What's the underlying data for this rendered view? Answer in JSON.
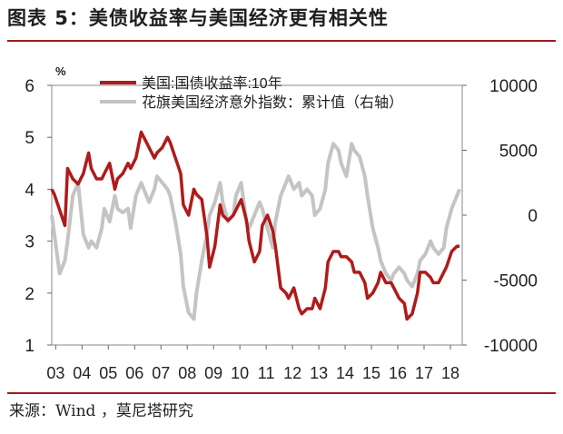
{
  "figure": {
    "title": "图表 5：美债收益率与美国经济更有相关性",
    "source": "来源：Wind ，莫尼塔研究"
  },
  "chart_data": {
    "type": "line",
    "left_axis_unit": "%",
    "x_ticks": [
      "03",
      "04",
      "05",
      "06",
      "07",
      "08",
      "09",
      "10",
      "11",
      "12",
      "13",
      "14",
      "15",
      "16",
      "17",
      "18"
    ],
    "y_left": {
      "min": 1,
      "max": 6,
      "ticks": [
        1,
        2,
        3,
        4,
        5,
        6
      ]
    },
    "y_right": {
      "min": -10000,
      "max": 10000,
      "ticks": [
        -10000,
        -5000,
        0,
        5000,
        10000
      ]
    },
    "legend_position": "top",
    "grid": false,
    "series": [
      {
        "name": "美国:国债收益率:10年",
        "axis": "left",
        "color": "#b01a1a",
        "x": [
          2003.0,
          2003.1,
          2003.3,
          2003.5,
          2003.6,
          2003.8,
          2004.0,
          2004.2,
          2004.4,
          2004.5,
          2004.7,
          2004.9,
          2005.0,
          2005.2,
          2005.4,
          2005.5,
          2005.7,
          2005.9,
          2006.0,
          2006.2,
          2006.4,
          2006.5,
          2006.7,
          2006.9,
          2007.0,
          2007.2,
          2007.4,
          2007.5,
          2007.7,
          2007.9,
          2008.0,
          2008.2,
          2008.4,
          2008.5,
          2008.7,
          2008.9,
          2009.0,
          2009.2,
          2009.4,
          2009.5,
          2009.7,
          2009.9,
          2010.0,
          2010.2,
          2010.4,
          2010.5,
          2010.7,
          2010.9,
          2011.0,
          2011.2,
          2011.4,
          2011.5,
          2011.7,
          2011.9,
          2012.0,
          2012.2,
          2012.4,
          2012.5,
          2012.7,
          2012.9,
          2013.0,
          2013.2,
          2013.4,
          2013.5,
          2013.7,
          2013.9,
          2014.0,
          2014.2,
          2014.4,
          2014.5,
          2014.7,
          2014.9,
          2015.0,
          2015.2,
          2015.4,
          2015.5,
          2015.7,
          2015.9,
          2016.0,
          2016.2,
          2016.4,
          2016.5,
          2016.7,
          2016.9,
          2017.0,
          2017.2,
          2017.4,
          2017.5,
          2017.7,
          2017.9,
          2018.0,
          2018.2,
          2018.4,
          2018.5
        ],
        "values": [
          4.0,
          3.9,
          3.6,
          3.3,
          4.4,
          4.2,
          4.1,
          4.3,
          4.7,
          4.4,
          4.2,
          4.2,
          4.3,
          4.5,
          4.0,
          4.2,
          4.3,
          4.5,
          4.4,
          4.6,
          5.1,
          5.0,
          4.8,
          4.6,
          4.7,
          4.8,
          5.0,
          4.9,
          4.6,
          4.3,
          3.7,
          3.5,
          4.0,
          3.9,
          3.8,
          3.1,
          2.5,
          2.9,
          3.7,
          3.5,
          3.4,
          3.5,
          3.6,
          3.8,
          3.4,
          3.0,
          2.6,
          2.8,
          3.3,
          3.5,
          3.2,
          2.9,
          2.1,
          2.0,
          1.9,
          2.1,
          1.7,
          1.6,
          1.7,
          1.7,
          1.9,
          1.7,
          2.1,
          2.6,
          2.8,
          2.8,
          2.7,
          2.7,
          2.6,
          2.4,
          2.4,
          2.2,
          1.9,
          2.0,
          2.2,
          2.4,
          2.2,
          2.2,
          2.1,
          1.9,
          1.8,
          1.5,
          1.6,
          2.0,
          2.4,
          2.4,
          2.3,
          2.2,
          2.2,
          2.4,
          2.5,
          2.8,
          2.9,
          2.9
        ]
      },
      {
        "name": "花旗美国经济意外指数：累计值（右轴）",
        "axis": "right",
        "color": "#c4c4c4",
        "x": [
          2003.0,
          2003.1,
          2003.3,
          2003.5,
          2003.6,
          2003.8,
          2004.0,
          2004.2,
          2004.4,
          2004.5,
          2004.7,
          2004.9,
          2005.0,
          2005.2,
          2005.4,
          2005.5,
          2005.7,
          2005.9,
          2006.0,
          2006.2,
          2006.4,
          2006.5,
          2006.7,
          2006.9,
          2007.0,
          2007.2,
          2007.4,
          2007.5,
          2007.7,
          2007.9,
          2008.0,
          2008.2,
          2008.4,
          2008.5,
          2008.7,
          2008.9,
          2009.0,
          2009.2,
          2009.4,
          2009.5,
          2009.7,
          2009.9,
          2010.0,
          2010.2,
          2010.4,
          2010.5,
          2010.7,
          2010.9,
          2011.0,
          2011.2,
          2011.4,
          2011.5,
          2011.7,
          2011.9,
          2012.0,
          2012.2,
          2012.4,
          2012.5,
          2012.7,
          2012.9,
          2013.0,
          2013.2,
          2013.4,
          2013.5,
          2013.7,
          2013.9,
          2014.0,
          2014.2,
          2014.4,
          2014.5,
          2014.7,
          2014.9,
          2015.0,
          2015.2,
          2015.4,
          2015.5,
          2015.7,
          2015.9,
          2016.0,
          2016.2,
          2016.4,
          2016.5,
          2016.7,
          2016.9,
          2017.0,
          2017.2,
          2017.4,
          2017.5,
          2017.7,
          2017.9,
          2018.0,
          2018.2,
          2018.4,
          2018.5
        ],
        "values": [
          0,
          -1500,
          -4500,
          -3500,
          -2000,
          1500,
          2500,
          -1500,
          -2500,
          -2000,
          -2500,
          -1000,
          500,
          -500,
          1500,
          500,
          200,
          500,
          -1000,
          1500,
          2500,
          2000,
          1000,
          2000,
          3000,
          2500,
          2000,
          1500,
          -500,
          -3000,
          -5500,
          -7500,
          -8000,
          -6000,
          -3500,
          -1500,
          0,
          1000,
          2500,
          1000,
          -500,
          0,
          1500,
          2500,
          -500,
          -1000,
          0,
          1000,
          500,
          -1000,
          -2500,
          -500,
          1500,
          2500,
          3000,
          2000,
          2500,
          1500,
          2000,
          1500,
          0,
          500,
          2000,
          4000,
          5500,
          5000,
          4000,
          3000,
          5500,
          5000,
          4500,
          3000,
          1500,
          -1000,
          -2500,
          -3500,
          -4500,
          -5000,
          -4500,
          -4000,
          -4500,
          -5000,
          -5500,
          -4500,
          -3500,
          -3000,
          -2000,
          -2500,
          -3000,
          -2500,
          -1000,
          500,
          1500,
          2000
        ]
      }
    ]
  }
}
